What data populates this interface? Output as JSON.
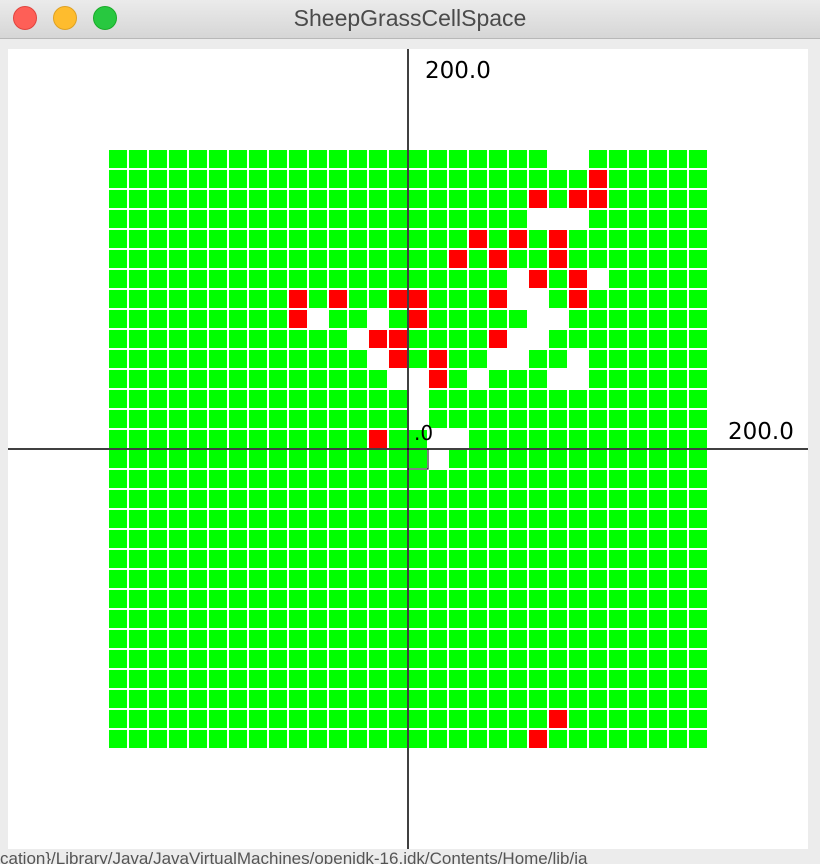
{
  "window": {
    "title": "SheepGrassCellSpace"
  },
  "colors": {
    "grass": "#00ff00",
    "sheep": "#ff0000",
    "empty": "#ffffff",
    "grid_line": "#ffffff",
    "axis": "#000000"
  },
  "axes": {
    "x_max_label": "200.0",
    "y_max_label": "200.0",
    "origin_label": ".0"
  },
  "background_text": "cation}/Library/Java/JavaVirtualMachines/openjdk-16.jdk/Contents/Home/lib/ja",
  "grid": {
    "cols": 30,
    "rows": 30,
    "col_range": [
      -15,
      14
    ],
    "row_range": [
      -15,
      14
    ],
    "sheep_cells": [
      [
        9,
        13
      ],
      [
        6,
        12
      ],
      [
        8,
        12
      ],
      [
        9,
        12
      ],
      [
        3,
        10
      ],
      [
        5,
        10
      ],
      [
        7,
        10
      ],
      [
        2,
        9
      ],
      [
        4,
        9
      ],
      [
        7,
        9
      ],
      [
        6,
        8
      ],
      [
        8,
        8
      ],
      [
        -6,
        7
      ],
      [
        -4,
        7
      ],
      [
        -1,
        7
      ],
      [
        0,
        7
      ],
      [
        4,
        7
      ],
      [
        8,
        7
      ],
      [
        -6,
        6
      ],
      [
        0,
        6
      ],
      [
        -2,
        5
      ],
      [
        -1,
        5
      ],
      [
        4,
        5
      ],
      [
        -1,
        4
      ],
      [
        1,
        4
      ],
      [
        1,
        3
      ],
      [
        -2,
        0
      ],
      [
        7,
        -14
      ],
      [
        6,
        -15
      ]
    ],
    "empty_cells": [
      [
        7,
        14
      ],
      [
        8,
        14
      ],
      [
        6,
        11
      ],
      [
        7,
        11
      ],
      [
        8,
        11
      ],
      [
        7,
        9
      ],
      [
        9,
        8
      ],
      [
        5,
        8
      ],
      [
        5,
        7
      ],
      [
        6,
        7
      ],
      [
        -5,
        6
      ],
      [
        -2,
        6
      ],
      [
        6,
        6
      ],
      [
        7,
        6
      ],
      [
        -3,
        5
      ],
      [
        5,
        5
      ],
      [
        6,
        5
      ],
      [
        -2,
        4
      ],
      [
        4,
        4
      ],
      [
        5,
        4
      ],
      [
        8,
        4
      ],
      [
        3,
        3
      ],
      [
        -1,
        3
      ],
      [
        0,
        3
      ],
      [
        7,
        3
      ],
      [
        8,
        3
      ],
      [
        0,
        2
      ],
      [
        0,
        1
      ],
      [
        1,
        0
      ],
      [
        2,
        0
      ],
      [
        1,
        -1
      ]
    ]
  }
}
